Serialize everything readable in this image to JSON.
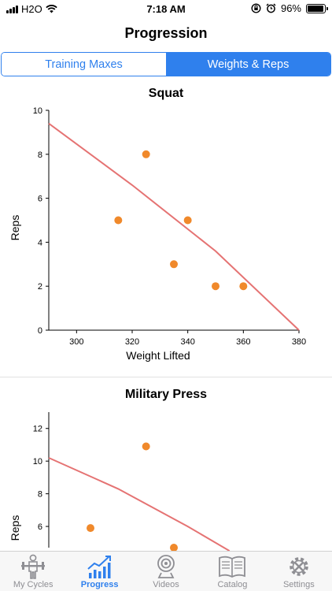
{
  "status_bar": {
    "carrier": "H2O",
    "time": "7:18 AM",
    "battery": "96%",
    "battery_level": 0.96
  },
  "header": {
    "title": "Progression"
  },
  "segmented": {
    "options": [
      {
        "label": "Training Maxes",
        "selected": false
      },
      {
        "label": "Weights & Reps",
        "selected": true
      }
    ]
  },
  "charts": {
    "squat": {
      "title": "Squat"
    },
    "military_press": {
      "title": "Military Press"
    }
  },
  "colors": {
    "accent": "#2f80ed",
    "point": "#f0892b",
    "trend": "#e57373"
  },
  "chart_data": [
    {
      "type": "scatter",
      "title": "Squat",
      "xlabel": "Weight Lifted",
      "ylabel": "Reps",
      "xlim": [
        290,
        380
      ],
      "ylim": [
        0,
        10
      ],
      "xticks": [
        300,
        320,
        340,
        360,
        380
      ],
      "yticks": [
        0,
        2,
        4,
        6,
        8,
        10
      ],
      "points": [
        {
          "x": 315,
          "y": 5
        },
        {
          "x": 325,
          "y": 8
        },
        {
          "x": 335,
          "y": 3
        },
        {
          "x": 340,
          "y": 5
        },
        {
          "x": 350,
          "y": 2
        },
        {
          "x": 360,
          "y": 2
        }
      ],
      "trend_line": [
        {
          "x": 290,
          "y": 9.4
        },
        {
          "x": 320,
          "y": 6.6
        },
        {
          "x": 350,
          "y": 3.6
        },
        {
          "x": 380,
          "y": 0
        }
      ]
    },
    {
      "type": "scatter",
      "title": "Military Press",
      "xlabel": "",
      "ylabel": "Reps",
      "xlim": [
        290,
        380
      ],
      "ylim": [
        4.7,
        13
      ],
      "xticks": [],
      "yticks": [
        6,
        8,
        10,
        12
      ],
      "points": [
        {
          "x": 305,
          "y": 5.9
        },
        {
          "x": 325,
          "y": 10.9
        },
        {
          "x": 335,
          "y": 4.7
        }
      ],
      "trend_line": [
        {
          "x": 290,
          "y": 10.2
        },
        {
          "x": 315,
          "y": 8.3
        },
        {
          "x": 340,
          "y": 6.0
        },
        {
          "x": 355,
          "y": 4.5
        }
      ]
    }
  ],
  "tabs": [
    {
      "label": "My Cycles",
      "icon": "weightlifter-icon",
      "active": false
    },
    {
      "label": "Progress",
      "icon": "chart-growth-icon",
      "active": true
    },
    {
      "label": "Videos",
      "icon": "webcam-icon",
      "active": false
    },
    {
      "label": "Catalog",
      "icon": "book-icon",
      "active": false
    },
    {
      "label": "Settings",
      "icon": "gear-wrench-icon",
      "active": false
    }
  ]
}
